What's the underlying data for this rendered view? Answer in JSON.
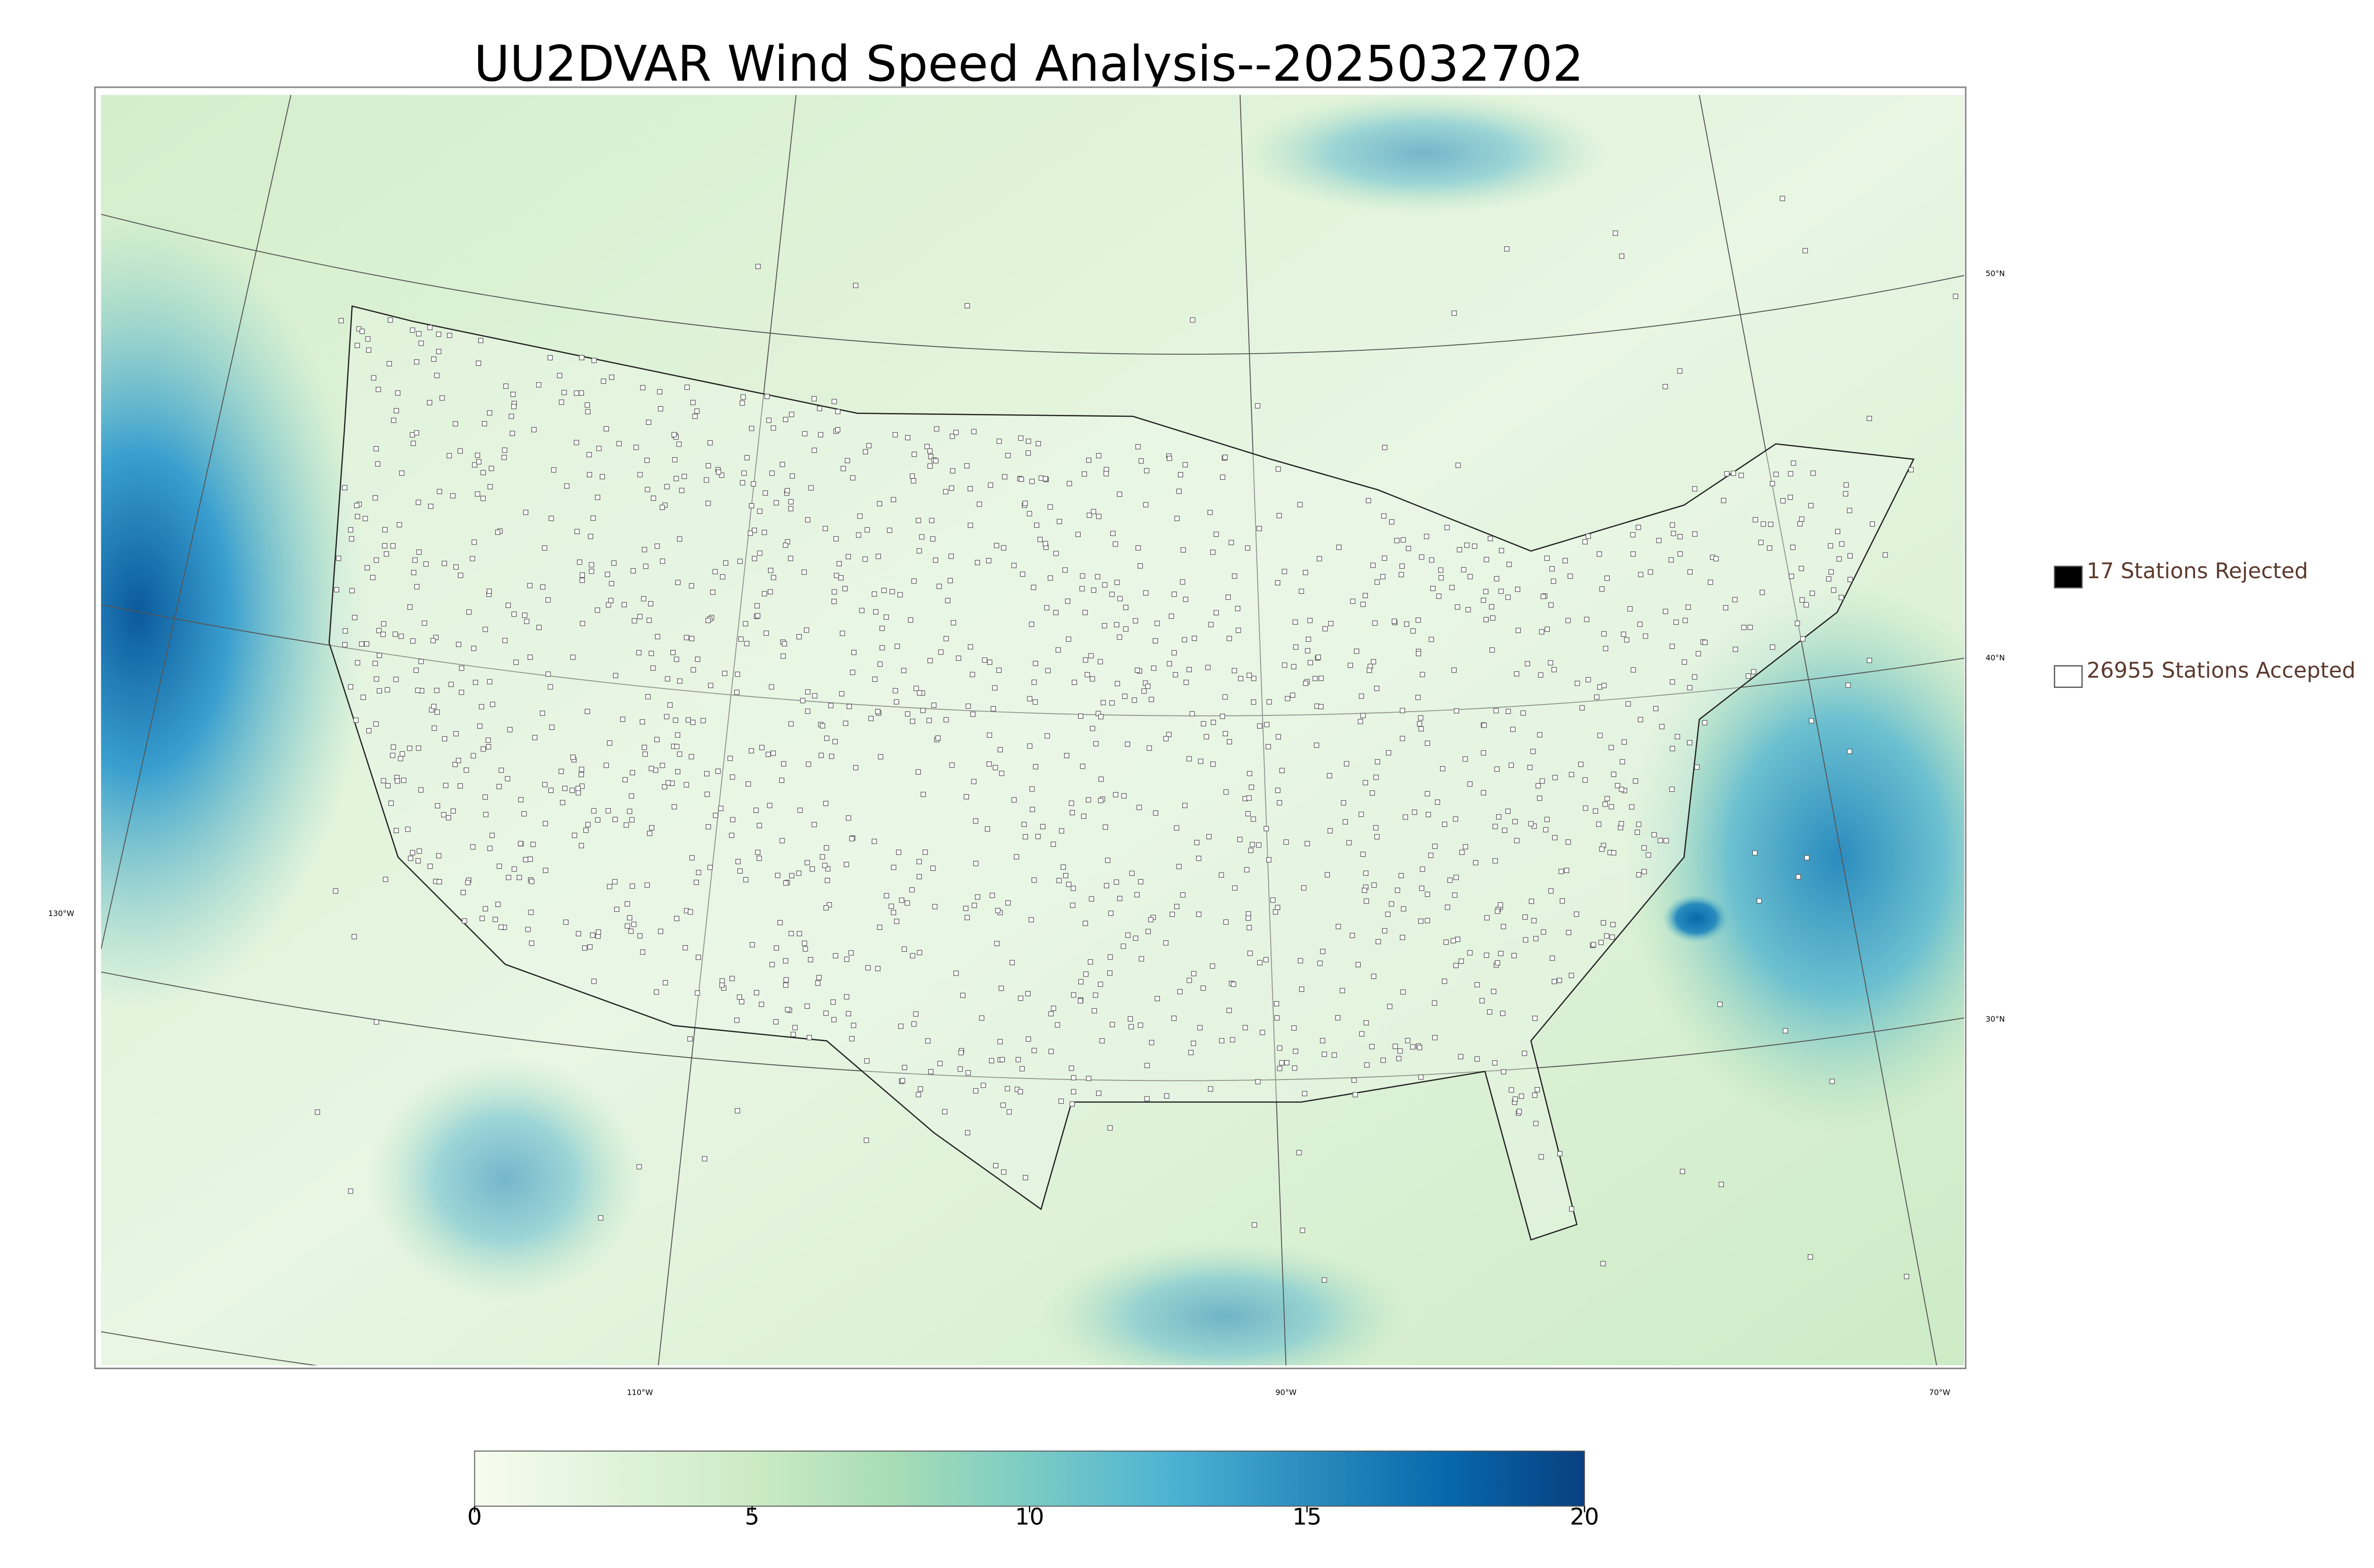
{
  "title": "UU2DVAR Wind Speed Analysis--2025032702",
  "legend": {
    "items": [
      {
        "label": "17 Stations Rejected",
        "color": "#000000"
      },
      {
        "label": "26955 Stations Accepted",
        "color": "#ffffff"
      }
    ]
  },
  "map": {
    "lat_labels": [
      "50°N",
      "40°N",
      "30°N"
    ],
    "lon_labels": [
      "130°W",
      "110°W",
      "90°W",
      "70°W"
    ]
  },
  "colorbar": {
    "lim": [
      0,
      20
    ],
    "ticks": [
      0,
      5,
      10,
      15,
      20
    ],
    "colors": [
      "#f7fcf0",
      "#e0f3db",
      "#ccebc5",
      "#a8ddb5",
      "#7bccc4",
      "#4eb3d3",
      "#2b8cbe",
      "#0868ac",
      "#084081"
    ]
  }
}
